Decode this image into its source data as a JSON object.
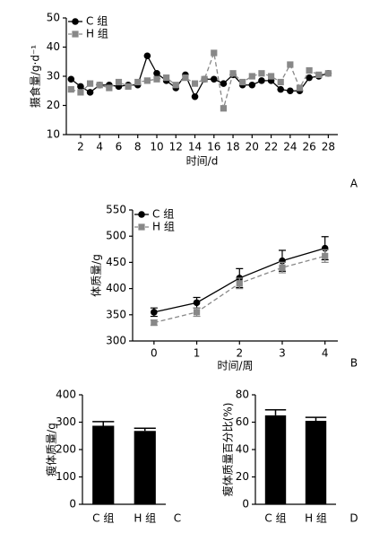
{
  "chart_data": [
    {
      "type": "line",
      "panel_label": "A",
      "x_label": "时间/d",
      "y_label": "摄食量/g·d⁻¹",
      "x": [
        1,
        2,
        3,
        4,
        5,
        6,
        7,
        8,
        9,
        10,
        11,
        12,
        13,
        14,
        15,
        16,
        17,
        18,
        19,
        20,
        21,
        22,
        23,
        24,
        25,
        26,
        27,
        28
      ],
      "xlim": [
        0.5,
        29
      ],
      "xticks": [
        2,
        4,
        6,
        8,
        10,
        12,
        14,
        16,
        18,
        20,
        22,
        24,
        26,
        28
      ],
      "ylim": [
        10,
        50
      ],
      "yticks": [
        10,
        20,
        30,
        40,
        50
      ],
      "legend": "upper left",
      "series": [
        {
          "name": "C 组",
          "color": "#000000",
          "marker": "circle",
          "linestyle": "solid",
          "values": [
            29,
            26.5,
            24.5,
            27,
            27,
            26.5,
            27,
            27,
            37,
            31,
            28.5,
            26,
            30.5,
            23,
            29,
            29,
            27.5,
            30.5,
            27,
            27,
            28.5,
            28.5,
            25.5,
            25,
            25,
            29.5,
            30,
            31
          ]
        },
        {
          "name": "H 组",
          "color": "#888888",
          "marker": "square",
          "linestyle": "dashed",
          "values": [
            25.5,
            24.5,
            27.5,
            27,
            26,
            28,
            26.5,
            28,
            28.5,
            29,
            29.5,
            27,
            29.5,
            27.5,
            29,
            38,
            19,
            31,
            28,
            30,
            31,
            30,
            28,
            34,
            26,
            32,
            30.5,
            31
          ]
        }
      ]
    },
    {
      "type": "line",
      "panel_label": "B",
      "x_label": "时间/周",
      "y_label": "体质量/g",
      "x": [
        0,
        1,
        2,
        3,
        4
      ],
      "xlim": [
        -0.5,
        4.3
      ],
      "xticks": [
        0,
        1,
        2,
        3,
        4
      ],
      "ylim": [
        300,
        550
      ],
      "yticks": [
        300,
        350,
        400,
        450,
        500,
        550
      ],
      "legend": "upper left",
      "series": [
        {
          "name": "C 组",
          "color": "#000000",
          "marker": "circle",
          "linestyle": "solid",
          "values": [
            355,
            373,
            420,
            453,
            477
          ],
          "errors": [
            8,
            10,
            18,
            20,
            22
          ]
        },
        {
          "name": "H 组",
          "color": "#888888",
          "marker": "square",
          "linestyle": "dashed",
          "values": [
            335,
            355,
            410,
            440,
            462
          ],
          "errors": [
            5,
            8,
            10,
            10,
            12
          ]
        }
      ]
    },
    {
      "type": "bar",
      "panel_label": "C",
      "y_label": "瘦体质量/g",
      "categories": [
        "C 组",
        "H 组"
      ],
      "values": [
        287,
        268
      ],
      "errors": [
        15,
        10
      ],
      "color": "#000000",
      "ylim": [
        0,
        400
      ],
      "yticks": [
        0,
        100,
        200,
        300,
        400
      ]
    },
    {
      "type": "bar",
      "panel_label": "D",
      "y_label": "瘦体质量百分比(%)",
      "categories": [
        "C 组",
        "H 组"
      ],
      "values": [
        65,
        61
      ],
      "errors": [
        4,
        2.5
      ],
      "color": "#000000",
      "ylim": [
        0,
        80
      ],
      "yticks": [
        0,
        20,
        40,
        60,
        80
      ]
    }
  ]
}
